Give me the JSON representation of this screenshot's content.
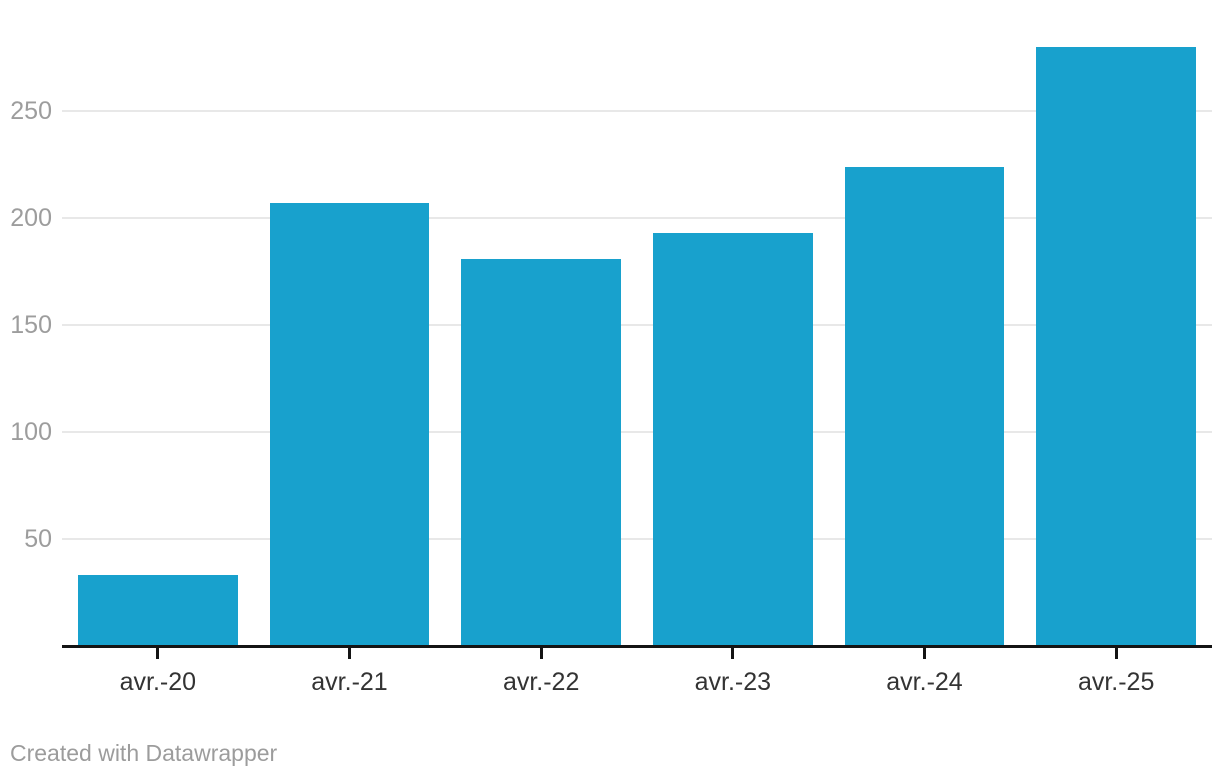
{
  "chart_data": {
    "type": "bar",
    "categories": [
      "avr.-20",
      "avr.-21",
      "avr.-22",
      "avr.-23",
      "avr.-24",
      "avr.-25"
    ],
    "values": [
      33,
      207,
      181,
      193,
      224,
      280
    ],
    "title": "",
    "xlabel": "",
    "ylabel": "",
    "ylim": [
      0,
      300
    ],
    "yticks": [
      50,
      100,
      150,
      200,
      250
    ],
    "grid": true,
    "legend": false
  },
  "colors": {
    "bar": "#18a1cd",
    "gridline": "#e8e8e8",
    "axis": "#141414",
    "y_tick_label": "#9d9d9d",
    "x_tick_label": "#333333",
    "footer_text": "#9c9c9c",
    "background": "#ffffff"
  },
  "footer": {
    "credit": "Created with Datawrapper"
  }
}
